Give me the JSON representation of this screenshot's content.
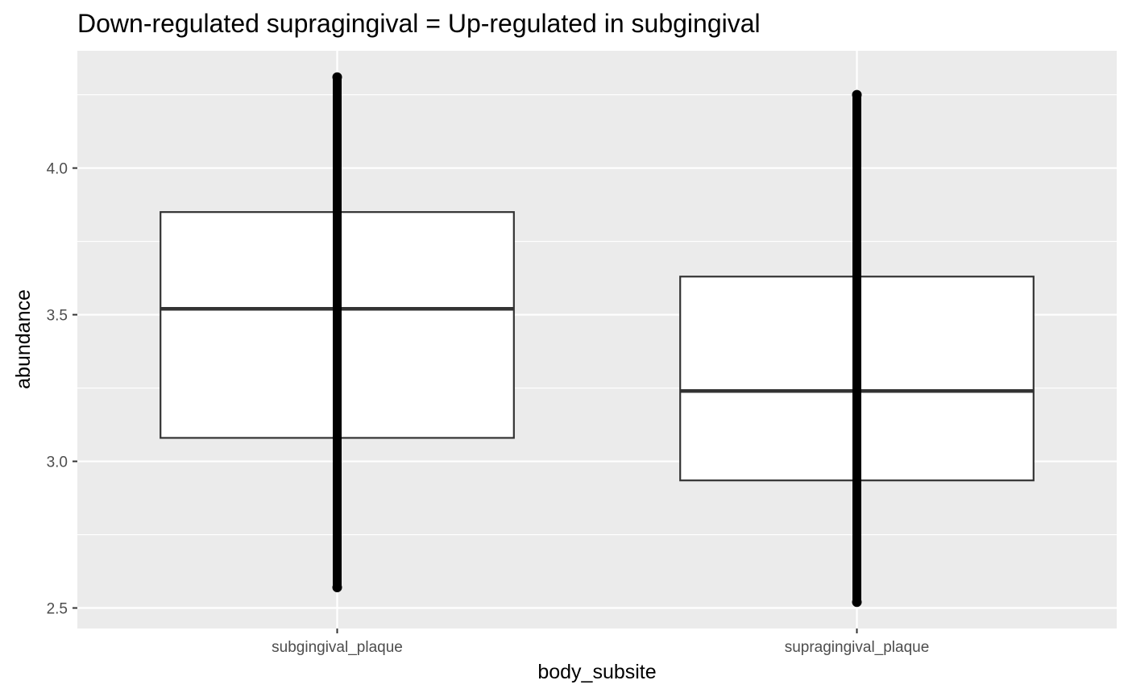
{
  "chart_data": {
    "type": "box",
    "title": "Down-regulated supragingival = Up-regulated in subgingival",
    "xlabel": "body_subsite",
    "ylabel": "abundance",
    "categories": [
      "subgingival_plaque",
      "supragingival_plaque"
    ],
    "ylim": [
      2.43,
      4.4
    ],
    "y_ticks": [
      2.5,
      3.0,
      3.5,
      4.0
    ],
    "y_tick_labels": [
      "2.5",
      "3.0",
      "3.5",
      "4.0"
    ],
    "grid": true,
    "boxes": [
      {
        "category": "subgingival_plaque",
        "q1": 3.08,
        "median": 3.52,
        "q3": 3.85,
        "points_min": 2.57,
        "points_max": 4.31
      },
      {
        "category": "supragingival_plaque",
        "q1": 2.935,
        "median": 3.24,
        "q3": 3.63,
        "points_min": 2.52,
        "points_max": 4.25
      }
    ],
    "colors": {
      "panel_background": "#EBEBEB",
      "grid": "#FFFFFF",
      "box_fill": "#FFFFFF",
      "box_outline": "#333333",
      "points": "#000000",
      "tick_label": "#4D4D4D"
    }
  }
}
